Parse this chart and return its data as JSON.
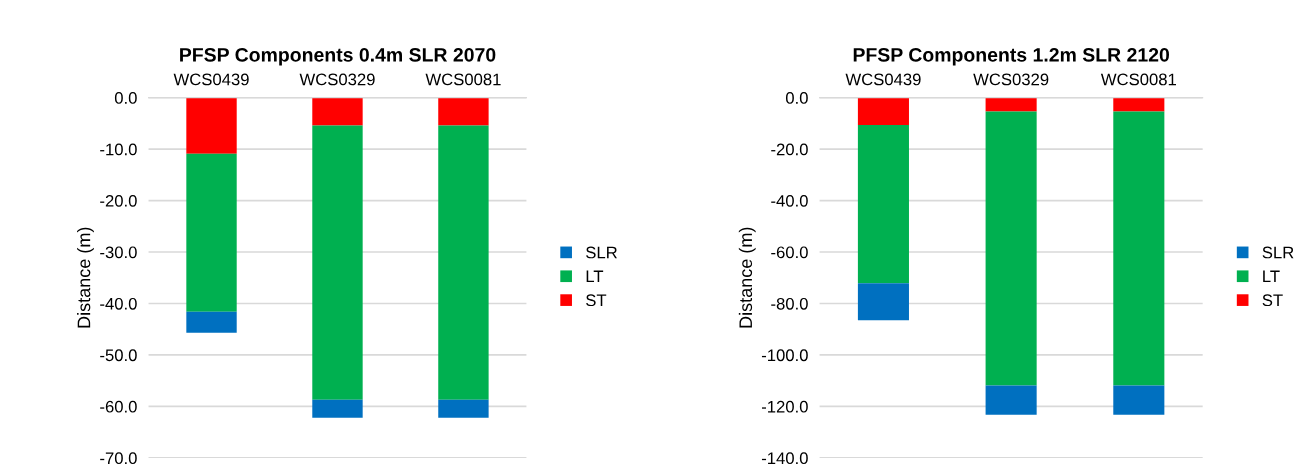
{
  "chart_data": [
    {
      "type": "bar",
      "title": "PFSP Components 0.4m SLR 2070",
      "ylabel": "Distance (m)",
      "categories": [
        "WCS0439",
        "WCS0329",
        "WCS0081"
      ],
      "stacked": true,
      "series": [
        {
          "name": "ST",
          "color": "#ff0000",
          "values": [
            -10.9,
            -5.4,
            -5.4
          ]
        },
        {
          "name": "LT",
          "color": "#00b050",
          "values": [
            -30.7,
            -53.3,
            -53.3
          ]
        },
        {
          "name": "SLR",
          "color": "#0070c0",
          "values": [
            -4.1,
            -3.5,
            -3.5
          ]
        }
      ],
      "ylim": [
        -70,
        0
      ],
      "yticks": [
        {
          "value": -70,
          "label": "-70.0"
        },
        {
          "value": -60,
          "label": "-60.0"
        },
        {
          "value": -50,
          "label": "-50.0"
        },
        {
          "value": -40,
          "label": "-40.0"
        },
        {
          "value": -30,
          "label": "-30.0"
        },
        {
          "value": -20,
          "label": "-20.0"
        },
        {
          "value": -10,
          "label": "-10.0"
        },
        {
          "value": 0,
          "label": "0.0"
        }
      ],
      "grid": "y",
      "legend": "right"
    },
    {
      "type": "bar",
      "title": "PFSP Components 1.2m SLR 2120",
      "ylabel": "Distance (m)",
      "categories": [
        "WCS0439",
        "WCS0329",
        "WCS0081"
      ],
      "stacked": true,
      "series": [
        {
          "name": "ST",
          "color": "#ff0000",
          "values": [
            -10.6,
            -5.4,
            -5.4
          ]
        },
        {
          "name": "LT",
          "color": "#00b050",
          "values": [
            -61.5,
            -106.5,
            -106.5
          ]
        },
        {
          "name": "SLR",
          "color": "#0070c0",
          "values": [
            -14.4,
            -11.3,
            -11.3
          ]
        }
      ],
      "ylim": [
        -140,
        0
      ],
      "yticks": [
        {
          "value": -140,
          "label": "-140.0"
        },
        {
          "value": -120,
          "label": "-120.0"
        },
        {
          "value": -100,
          "label": "-100.0"
        },
        {
          "value": -80,
          "label": "-80.0"
        },
        {
          "value": -60,
          "label": "-60.0"
        },
        {
          "value": -40,
          "label": "-40.0"
        },
        {
          "value": -20,
          "label": "-20.0"
        },
        {
          "value": 0,
          "label": "0.0"
        }
      ],
      "grid": "y",
      "legend": "right"
    }
  ]
}
